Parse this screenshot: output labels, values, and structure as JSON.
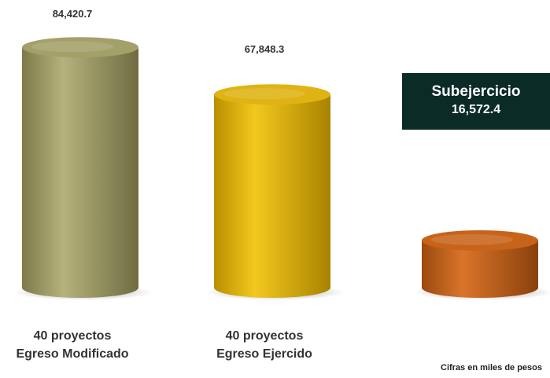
{
  "chart_data": {
    "type": "bar",
    "categories": [
      [
        "40 proyectos",
        "Egreso Modificado"
      ],
      [
        "40 proyectos",
        "Egreso Ejercido"
      ],
      [
        "",
        ""
      ]
    ],
    "values": [
      84420.7,
      67848.3,
      16572.4
    ],
    "value_labels": [
      "84,420.7",
      "67,848.3",
      ""
    ],
    "colors": [
      "#a3a069",
      "#dfb313",
      "#c8631a"
    ],
    "ylim": [
      0,
      90000
    ],
    "legend": "none",
    "grid": false
  },
  "callout": {
    "title": "Subejercicio",
    "value": "16,572.4"
  },
  "footnote": "Cifras en miles de pesos"
}
